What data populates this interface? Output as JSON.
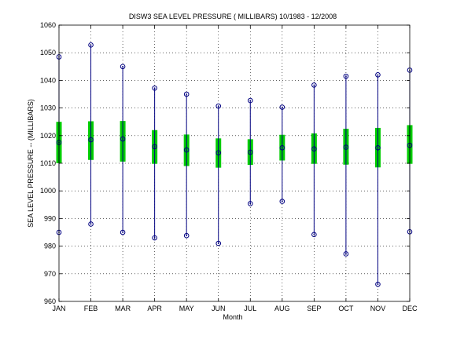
{
  "chart_data": {
    "type": "box",
    "title": "DISW3  SEA LEVEL PRESSURE ( MILLIBARS) 10/1983 - 12/2008",
    "xlabel": "Month",
    "ylabel": "SEA LEVEL PRESSURE -- (MILLIBARS)",
    "ylim": [
      960,
      1060
    ],
    "yticks": [
      "960",
      "970",
      "980",
      "990",
      "1000",
      "1010",
      "1020",
      "1030",
      "1040",
      "1050",
      "1060"
    ],
    "grid": true,
    "categories": [
      "JAN",
      "FEB",
      "MAR",
      "APR",
      "MAY",
      "JUN",
      "JUL",
      "AUG",
      "SEP",
      "OCT",
      "NOV",
      "DEC"
    ],
    "series": [
      {
        "max": [
          1048.5,
          1052.8,
          1045.0,
          1037.2,
          1035.0,
          1030.7,
          1032.7,
          1030.3,
          1038.3,
          1041.5,
          1042.0,
          1043.7
        ],
        "min": [
          985.0,
          988.0,
          985.0,
          983.0,
          983.8,
          981.0,
          995.4,
          996.2,
          984.2,
          977.2,
          966.2,
          985.2
        ],
        "mean": [
          1017.5,
          1018.5,
          1018.8,
          1016.0,
          1014.8,
          1013.8,
          1014.0,
          1015.6,
          1015.2,
          1015.8,
          1015.6,
          1016.5
        ],
        "q_low": [
          1010.0,
          1011.2,
          1010.6,
          1009.8,
          1009.0,
          1008.4,
          1009.4,
          1011.0,
          1009.8,
          1009.5,
          1008.5,
          1009.8
        ],
        "q_high": [
          1025.0,
          1025.2,
          1025.3,
          1022.0,
          1020.4,
          1019.0,
          1018.7,
          1020.3,
          1020.8,
          1022.5,
          1022.8,
          1023.8
        ]
      }
    ],
    "colors": {
      "whisker": "#000080",
      "box": "#00cc00",
      "marker": "#000080",
      "grid": "#000000",
      "axis": "#000000"
    }
  }
}
